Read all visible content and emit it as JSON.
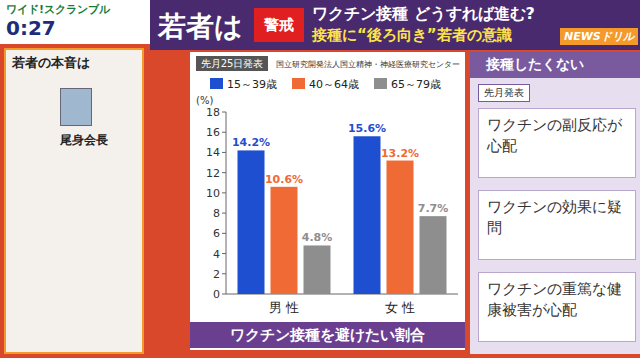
{
  "broadcast": {
    "program": "ワイド!スクランブル",
    "time": "0:27"
  },
  "header": {
    "lead": "若者は",
    "badge": "警戒",
    "headline": "ワクチン接種 どうすれば進む?",
    "subheadline": "接種に“後ろ向き”若者の意識",
    "corner": "NEWSドリル"
  },
  "left_panel": {
    "title": "若者の本音は",
    "speaker": "尾身会長"
  },
  "right_panel": {
    "title": "接種したくない",
    "date": "先月発表",
    "items": [
      "ワクチンの副反応が心配",
      "ワクチンの効果に疑問",
      "ワクチンの重篤な健康被害が心配"
    ]
  },
  "chart_data": {
    "type": "bar",
    "title": "ワクチン接種を避けたい割合",
    "annotations": [
      "先月25日発表",
      "国立研究開発法人国立精神・神経医療研究センター"
    ],
    "y_label": "(%)",
    "categories": [
      "男 性",
      "女 性"
    ],
    "series": [
      {
        "name": "15～39歳",
        "color": "#1f4fd1",
        "values": [
          14.2,
          15.6
        ],
        "value_labels": [
          "14.2%",
          "15.6%"
        ]
      },
      {
        "name": "40～64歳",
        "color": "#f06a35",
        "values": [
          10.6,
          13.2
        ],
        "value_labels": [
          "10.6%",
          "13.2%"
        ]
      },
      {
        "name": "65～79歳",
        "color": "#8e8e8e",
        "values": [
          4.8,
          7.7
        ],
        "value_labels": [
          "4.8%",
          "7.7%"
        ]
      }
    ],
    "ylim": [
      0,
      18
    ],
    "yticks": [
      0,
      2,
      4,
      6,
      8,
      10,
      12,
      14,
      16,
      18
    ],
    "grid": false,
    "legend": "top",
    "data_labels": true
  }
}
